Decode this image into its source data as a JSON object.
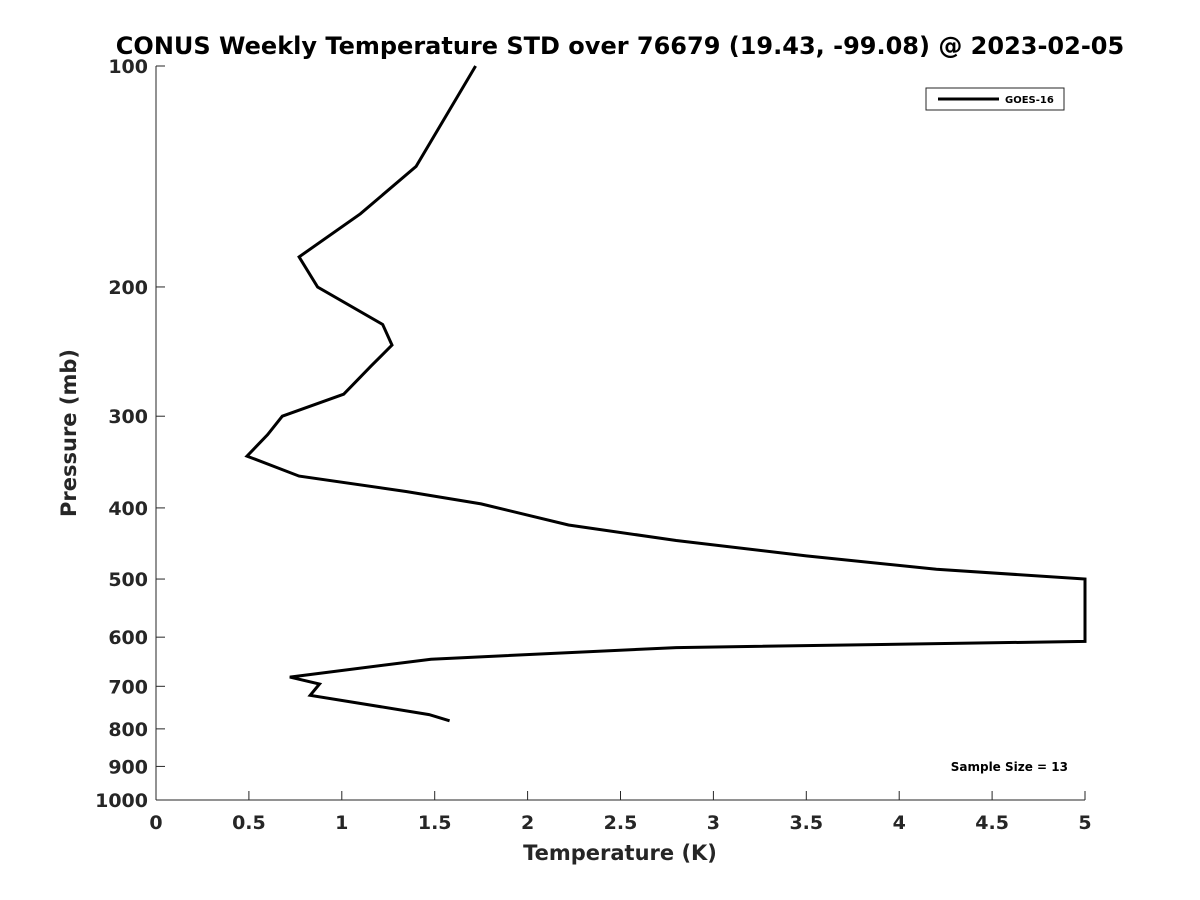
{
  "chart_data": {
    "type": "line",
    "title": "CONUS Weekly Temperature STD over 76679 (19.43, -99.08) @ 2023-02-05",
    "xlabel": "Temperature (K)",
    "ylabel": "Pressure (mb)",
    "xlim": [
      0,
      5
    ],
    "ylim": [
      100,
      1000
    ],
    "y_scale": "log",
    "y_reversed": true,
    "x_ticks": [
      0,
      0.5,
      1,
      1.5,
      2,
      2.5,
      3,
      3.5,
      4,
      4.5,
      5
    ],
    "x_tick_labels": [
      "0",
      "0.5",
      "1",
      "1.5",
      "2",
      "2.5",
      "3",
      "3.5",
      "4",
      "4.5",
      "5"
    ],
    "y_ticks": [
      100,
      200,
      300,
      400,
      500,
      600,
      700,
      800,
      900,
      1000
    ],
    "y_tick_labels": [
      "100",
      "200",
      "300",
      "400",
      "500",
      "600",
      "700",
      "800",
      "900",
      "1000"
    ],
    "grid": false,
    "legend_position": "top-right",
    "annotation": "Sample Size = 13",
    "series": [
      {
        "name": "GOES-16",
        "color": "#000000",
        "points": [
          [
            1.72,
            100
          ],
          [
            1.4,
            137
          ],
          [
            1.1,
            159
          ],
          [
            0.77,
            182
          ],
          [
            0.87,
            200
          ],
          [
            1.22,
            225
          ],
          [
            1.27,
            240
          ],
          [
            1.16,
            256
          ],
          [
            1.01,
            280
          ],
          [
            0.68,
            300
          ],
          [
            0.6,
            318
          ],
          [
            0.49,
            340
          ],
          [
            0.77,
            362
          ],
          [
            1.35,
            380
          ],
          [
            1.75,
            395
          ],
          [
            2.22,
            422
          ],
          [
            2.8,
            443
          ],
          [
            3.5,
            465
          ],
          [
            4.2,
            485
          ],
          [
            5.0,
            500
          ],
          [
            5.0,
            608
          ],
          [
            2.8,
            620
          ],
          [
            1.48,
            643
          ],
          [
            0.72,
            680
          ],
          [
            0.88,
            695
          ],
          [
            0.83,
            720
          ],
          [
            1.47,
            765
          ],
          [
            1.58,
            780
          ]
        ]
      }
    ]
  }
}
